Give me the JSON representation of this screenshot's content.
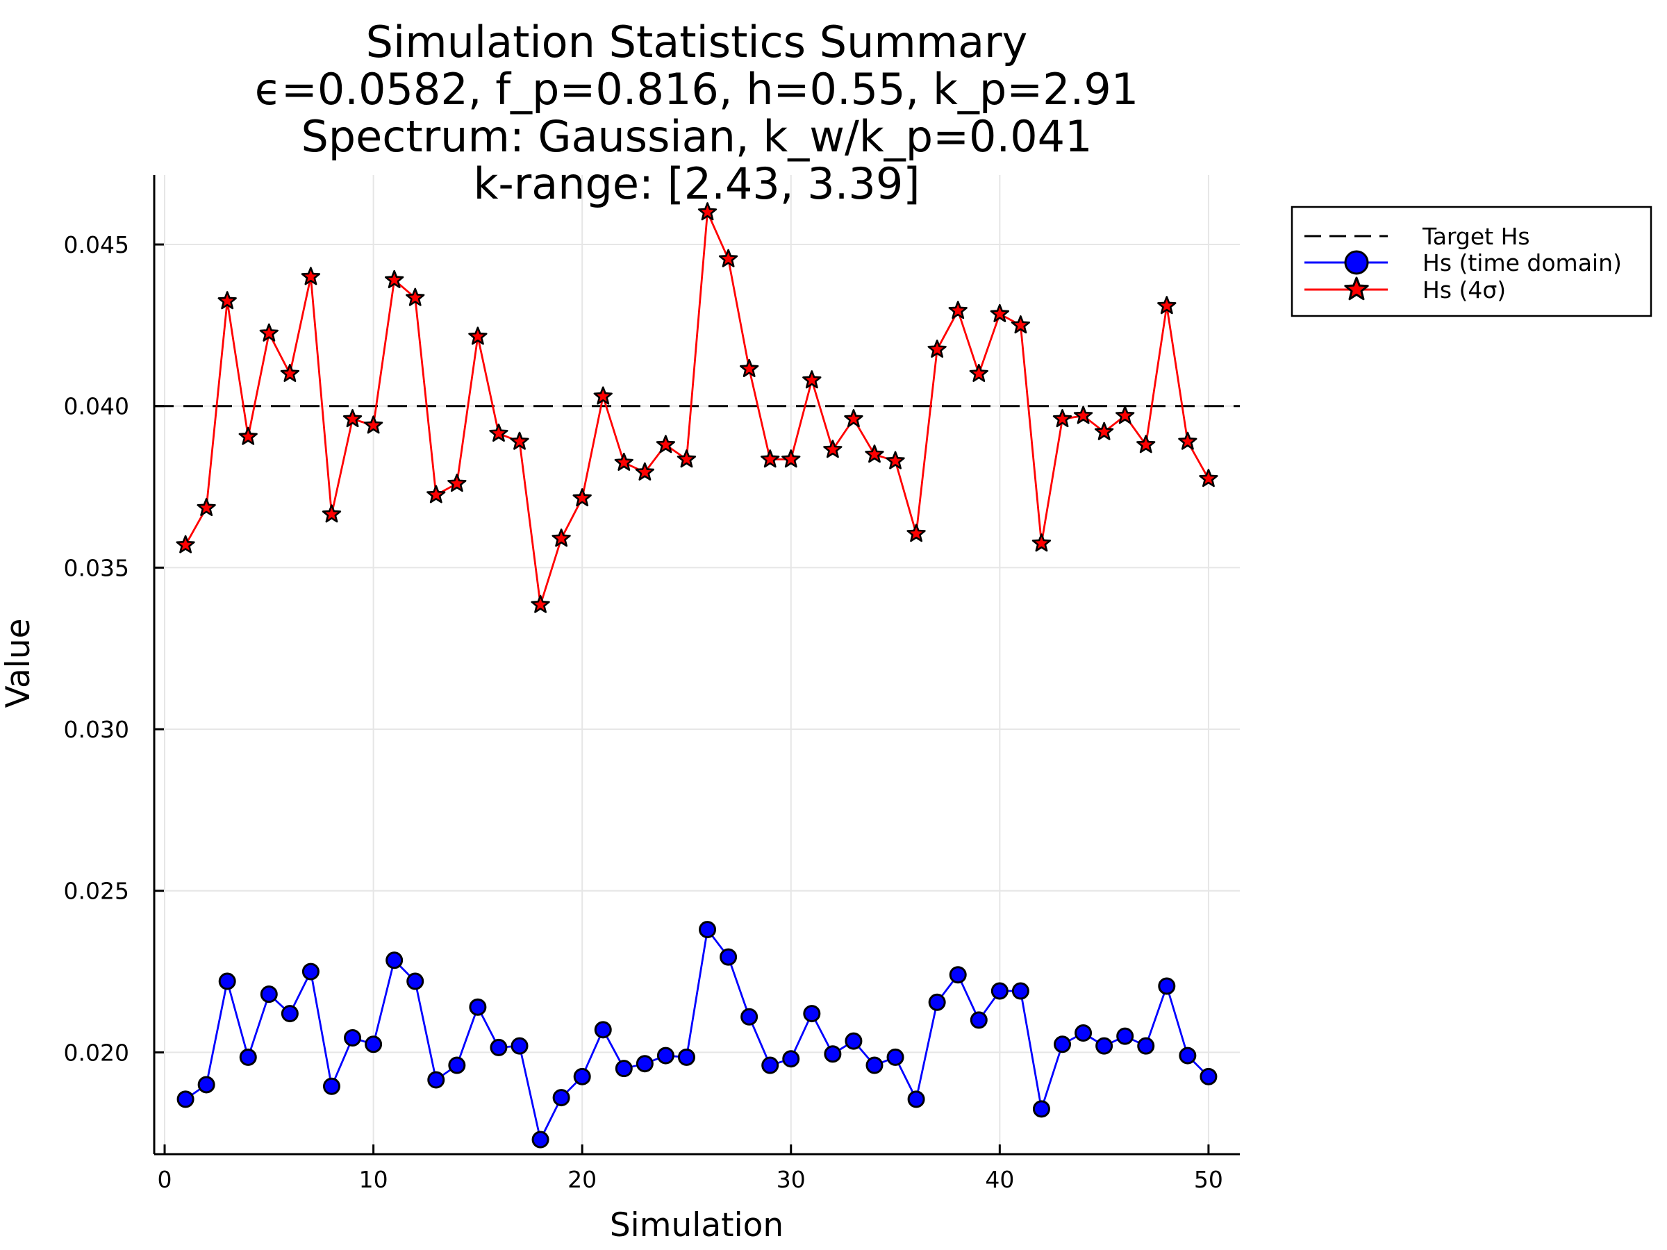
{
  "chart_data": {
    "type": "line",
    "title": [
      "Simulation Statistics Summary",
      "ϵ=0.0582, f_p=0.816, h=0.55, k_p=2.91",
      "Spectrum: Gaussian, k_w/k_p=0.041",
      "k-range: [2.43, 3.39]"
    ],
    "xlabel": "Simulation",
    "ylabel": "Value",
    "xlim": [
      -0.5,
      51.5
    ],
    "ylim": [
      0.01685,
      0.04715
    ],
    "xticks": [
      0,
      10,
      20,
      30,
      40,
      50
    ],
    "xtick_labels": [
      "0",
      "10",
      "20",
      "30",
      "40",
      "50"
    ],
    "yticks": [
      0.02,
      0.025,
      0.03,
      0.035,
      0.04,
      0.045
    ],
    "ytick_labels": [
      "0.020",
      "0.025",
      "0.030",
      "0.035",
      "0.040",
      "0.045"
    ],
    "grid": true,
    "legend_position": "outside-top-right",
    "target_hs": 0.04,
    "x": [
      1,
      2,
      3,
      4,
      5,
      6,
      7,
      8,
      9,
      10,
      11,
      12,
      13,
      14,
      15,
      16,
      17,
      18,
      19,
      20,
      21,
      22,
      23,
      24,
      25,
      26,
      27,
      28,
      29,
      30,
      31,
      32,
      33,
      34,
      35,
      36,
      37,
      38,
      39,
      40,
      41,
      42,
      43,
      44,
      45,
      46,
      47,
      48,
      49,
      50
    ],
    "series": [
      {
        "name": "Hs (time domain)",
        "color": "#0000ff",
        "marker": "circle",
        "values": [
          0.01855,
          0.019,
          0.0222,
          0.01985,
          0.0218,
          0.0212,
          0.0225,
          0.01895,
          0.02045,
          0.02025,
          0.02285,
          0.0222,
          0.01915,
          0.0196,
          0.0214,
          0.02015,
          0.0202,
          0.0173,
          0.0186,
          0.01925,
          0.0207,
          0.0195,
          0.01965,
          0.0199,
          0.01985,
          0.0238,
          0.02295,
          0.0211,
          0.0196,
          0.0198,
          0.0212,
          0.01995,
          0.02035,
          0.0196,
          0.01985,
          0.01855,
          0.02155,
          0.0224,
          0.021,
          0.0219,
          0.0219,
          0.01825,
          0.02025,
          0.0206,
          0.0202,
          0.0205,
          0.0202,
          0.02205,
          0.0199,
          0.01925
        ]
      },
      {
        "name": "Hs (4σ)",
        "color": "#ff0000",
        "marker": "star",
        "values": [
          0.0357,
          0.03685,
          0.04325,
          0.03905,
          0.04225,
          0.041,
          0.044,
          0.03665,
          0.0396,
          0.0394,
          0.0439,
          0.04335,
          0.03725,
          0.0376,
          0.04215,
          0.03915,
          0.0389,
          0.03385,
          0.0359,
          0.03715,
          0.0403,
          0.03825,
          0.03795,
          0.0388,
          0.03835,
          0.046,
          0.04455,
          0.04115,
          0.03835,
          0.03835,
          0.0408,
          0.03865,
          0.0396,
          0.0385,
          0.0383,
          0.03605,
          0.04175,
          0.04295,
          0.041,
          0.04285,
          0.0425,
          0.03575,
          0.0396,
          0.0397,
          0.0392,
          0.0397,
          0.0388,
          0.0431,
          0.0389,
          0.03775
        ]
      }
    ],
    "legend": [
      {
        "label": "Target Hs",
        "style": "dashed",
        "color": "#000000"
      },
      {
        "label": "Hs (time domain)",
        "style": "line-circle",
        "color": "#0000ff"
      },
      {
        "label": "Hs (4σ)",
        "style": "line-star",
        "color": "#ff0000"
      }
    ]
  }
}
